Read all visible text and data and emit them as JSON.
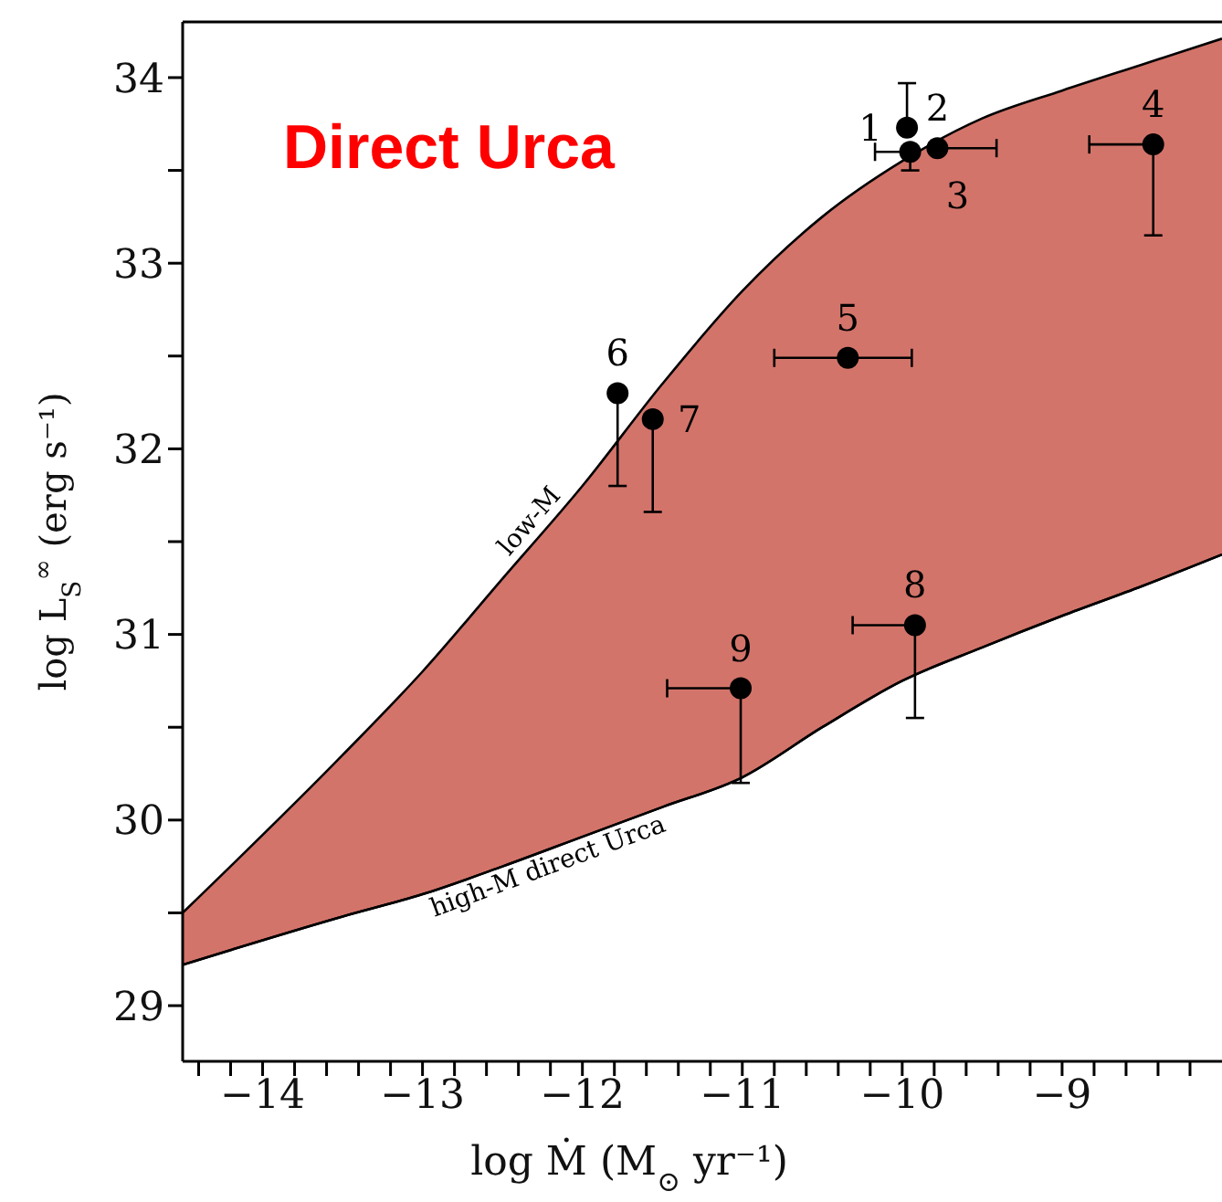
{
  "chart_data": {
    "type": "scatter",
    "title": "Direct Urca",
    "xlabel": "log Ṁ (M$_{⊙}$ yr⁻¹)",
    "ylabel": "log L$_{S}$$^{∞}$ (erg s⁻¹)",
    "xlim": [
      -14.5,
      -8
    ],
    "ylim": [
      28.7,
      34.3
    ],
    "xticks": [
      -14,
      -13,
      -12,
      -11,
      -10,
      -9,
      {
        "value": -14.4,
        "label": null
      },
      {
        "value": -14.2,
        "label": null
      },
      {
        "value": -13.8,
        "label": null
      },
      {
        "value": -13.6,
        "label": null
      },
      {
        "value": -13.4,
        "label": null
      },
      {
        "value": -13.2,
        "label": null
      },
      {
        "value": -12.8,
        "label": null
      },
      {
        "value": -12.6,
        "label": null
      },
      {
        "value": -12.4,
        "label": null
      },
      {
        "value": -12.2,
        "label": null
      },
      {
        "value": -11.8,
        "label": null
      },
      {
        "value": -11.6,
        "label": null
      },
      {
        "value": -11.4,
        "label": null
      },
      {
        "value": -11.2,
        "label": null
      },
      {
        "value": -10.8,
        "label": null
      },
      {
        "value": -10.6,
        "label": null
      },
      {
        "value": -10.4,
        "label": null
      },
      {
        "value": -10.2,
        "label": null
      },
      {
        "value": -9.8,
        "label": null
      },
      {
        "value": -9.6,
        "label": null
      },
      {
        "value": -9.4,
        "label": null
      },
      {
        "value": -9.2,
        "label": null
      },
      {
        "value": -8.8,
        "label": null
      },
      {
        "value": -8.6,
        "label": null
      },
      {
        "value": -8.4,
        "label": null
      },
      {
        "value": -8.2,
        "label": null
      }
    ],
    "yticks": [
      29,
      30,
      31,
      32,
      33,
      34,
      {
        "value": 29.5,
        "label": null
      },
      {
        "value": 30.5,
        "label": null
      },
      {
        "value": 31.5,
        "label": null
      },
      {
        "value": 32.5,
        "label": null
      },
      {
        "value": 33.5,
        "label": null
      }
    ],
    "grid": false,
    "legend": false,
    "series": [
      {
        "type": "area",
        "name": "low-M",
        "color": "#c0392b",
        "marker": "none",
        "x": [
          -14.5,
          -13.5,
          -13,
          -12.5,
          -12,
          -11.5,
          -11,
          -10.5,
          -10,
          -9.5,
          -9,
          -8.5,
          -8
        ],
        "values": [
          29.5,
          30.35,
          30.8,
          31.3,
          31.8,
          32.35,
          32.85,
          33.25,
          33.55,
          33.78,
          33.93,
          34.07,
          34.21
        ]
      },
      {
        "type": "line",
        "name": "high-M direct Urca",
        "color": "#000000",
        "marker": "none",
        "line_style": "solid",
        "x": [
          -14.5,
          -13.5,
          -13,
          -12.5,
          -12,
          -11.5,
          -11,
          -10.5,
          -10,
          -9.5,
          -9,
          -8.5,
          -8
        ],
        "values": [
          29.22,
          29.48,
          29.6,
          29.75,
          29.91,
          30.07,
          30.23,
          30.5,
          30.75,
          30.93,
          31.1,
          31.26,
          31.43
        ]
      },
      {
        "color": "#000000",
        "marker": "circle",
        "x": [
          -9.97,
          -9.78,
          -9.95,
          -8.43,
          -10.34,
          -11.78,
          -11.56,
          -9.92,
          -11.01
        ],
        "values": [
          33.73,
          33.62,
          33.6,
          33.64,
          32.49,
          32.3,
          32.16,
          31.05,
          30.71
        ],
        "errors": [
          [
            33.73,
            33.97
          ],
          null,
          [
            33.5,
            33.6
          ],
          [
            33.15,
            33.64
          ],
          null,
          [
            31.8,
            32.3
          ],
          [
            31.66,
            32.16
          ],
          [
            30.55,
            31.05
          ],
          [
            30.2,
            30.71
          ]
        ],
        "xerrors": [
          null,
          [
            -9.78,
            -9.41
          ],
          [
            -10.17,
            -9.95
          ],
          [
            -8.83,
            -8.43
          ],
          [
            -10.8,
            -9.94
          ],
          null,
          null,
          [
            -10.31,
            -9.92
          ],
          [
            -11.47,
            -11.01
          ]
        ]
      }
    ],
    "annotations": [
      {
        "text": "1",
        "x": -9.97,
        "y": 33.73
      },
      {
        "text": "2",
        "x": -9.78,
        "y": 33.62
      },
      {
        "text": "3",
        "x": -9.95,
        "y": 33.6
      },
      {
        "text": "4",
        "x": -8.43,
        "y": 33.64
      },
      {
        "text": "5",
        "x": -10.34,
        "y": 32.49
      },
      {
        "text": "6",
        "x": -11.78,
        "y": 32.3
      },
      {
        "text": "7",
        "x": -11.56,
        "y": 32.16
      },
      {
        "text": "8",
        "x": -9.92,
        "y": 31.05
      },
      {
        "text": "9",
        "x": -11.01,
        "y": 30.71
      }
    ]
  }
}
